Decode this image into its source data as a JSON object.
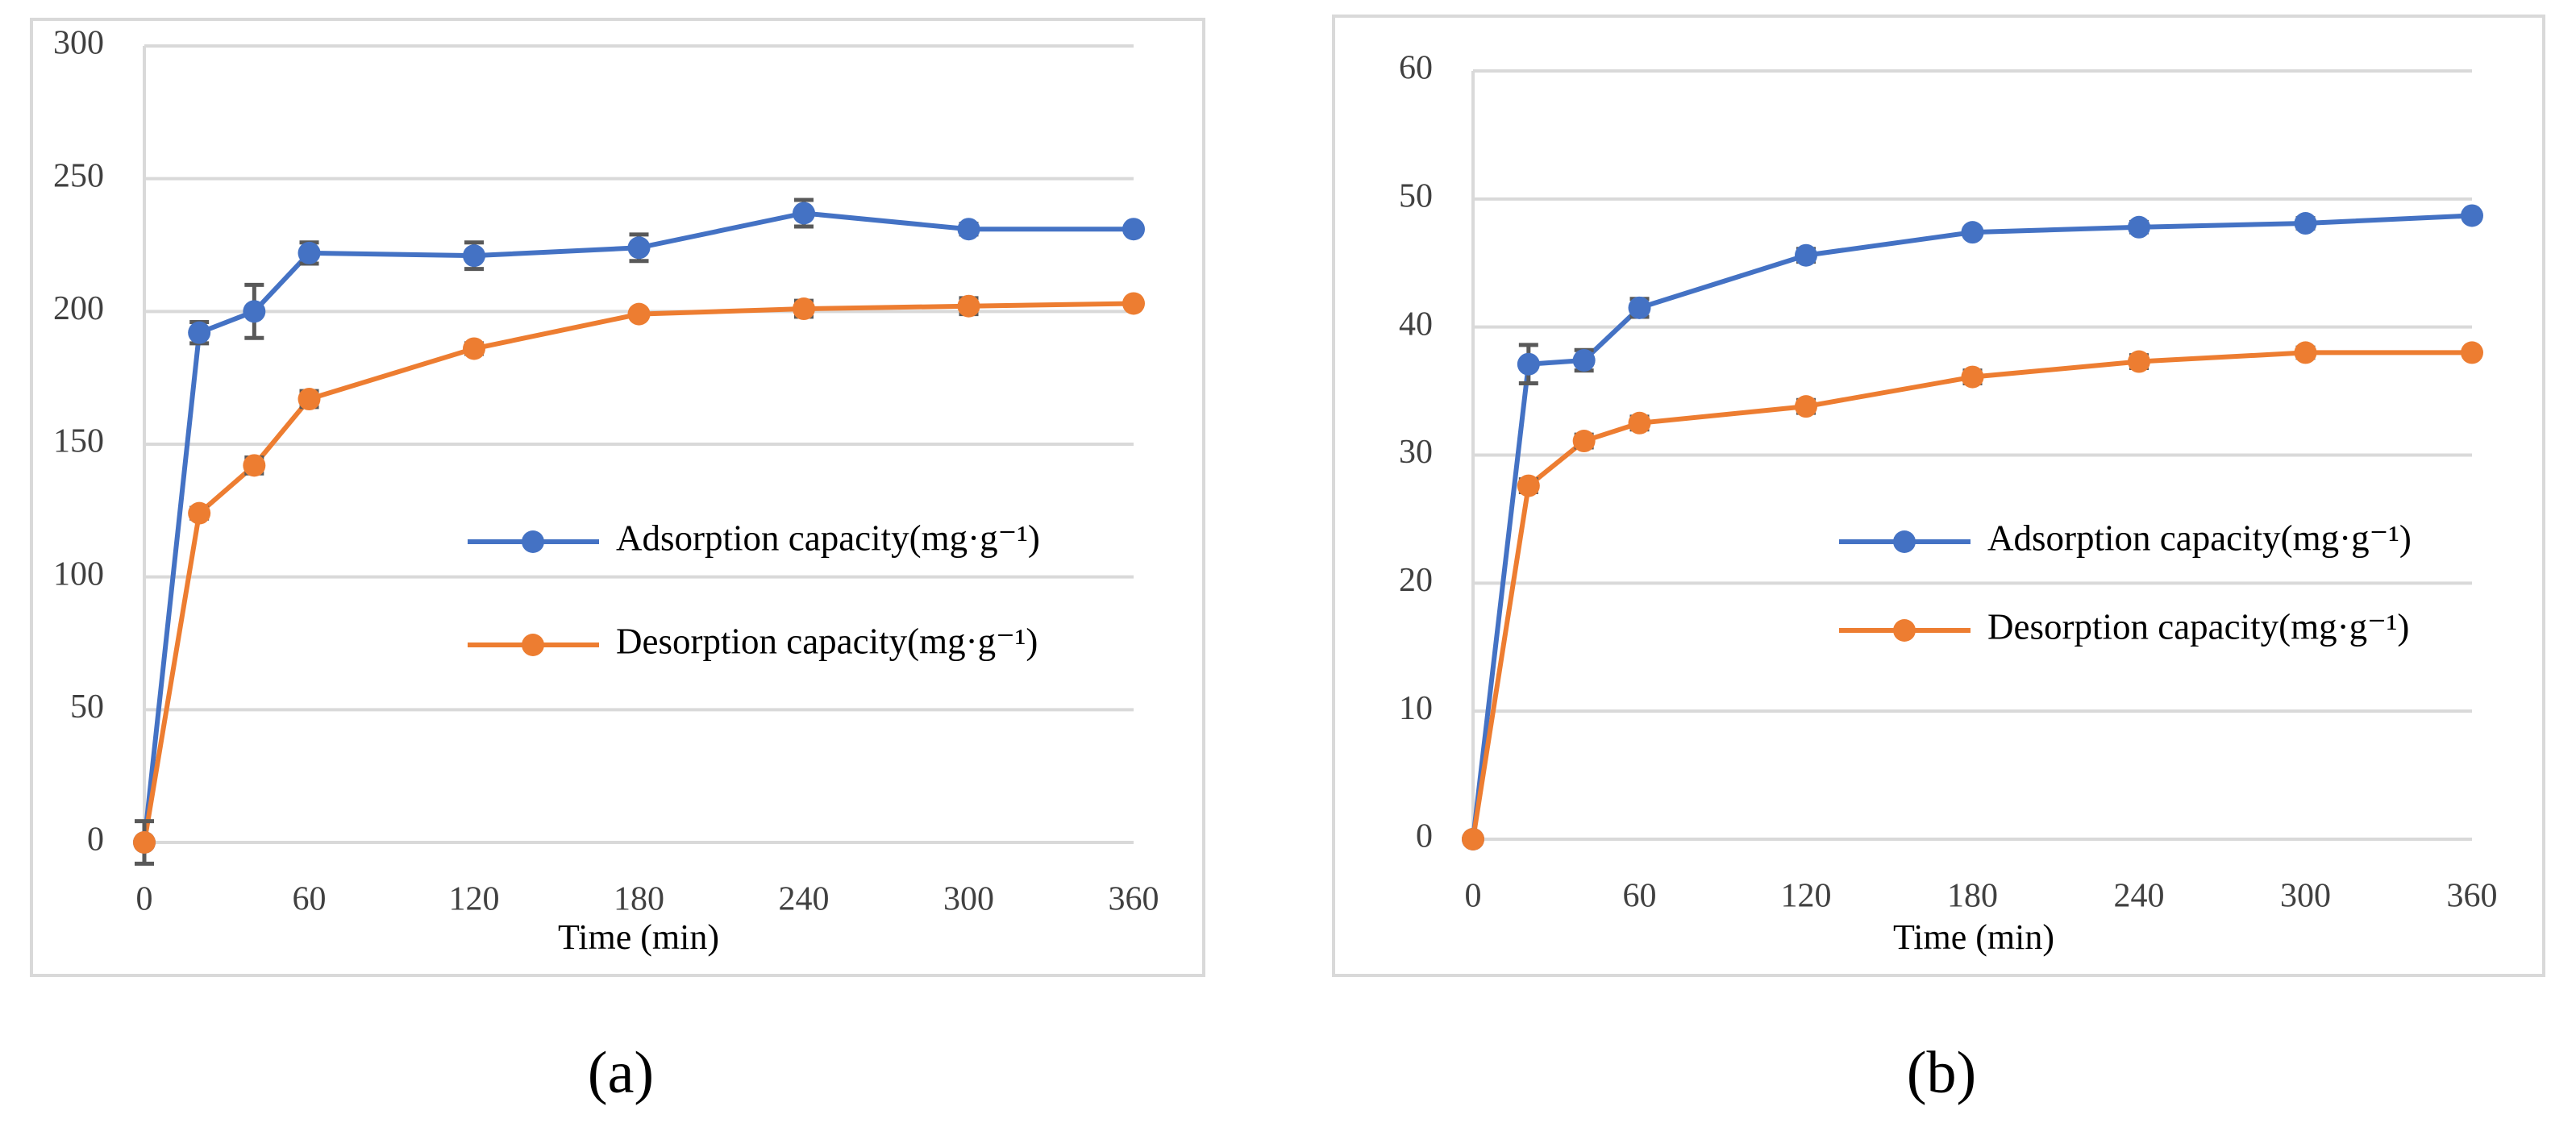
{
  "chart_data": [
    {
      "type": "line",
      "panel_label": "(a)",
      "x_label": "Time (min)",
      "x": [
        0,
        20,
        40,
        60,
        120,
        180,
        240,
        300,
        360
      ],
      "series": [
        {
          "name": "Adsorption capacity(mg·g⁻¹)",
          "color": "#4472c4",
          "values": [
            0,
            192,
            200,
            222,
            221,
            224,
            237,
            231,
            231
          ],
          "errors": [
            8,
            4,
            10,
            4,
            5,
            5,
            5,
            2,
            1
          ]
        },
        {
          "name": "Desorption capacity(mg·g⁻¹)",
          "color": "#ed7d31",
          "values": [
            0,
            124,
            142,
            167,
            186,
            199,
            201,
            202,
            203
          ],
          "errors": [
            0,
            2,
            3,
            3,
            2,
            1,
            3,
            3,
            1
          ]
        }
      ],
      "xlim": [
        0,
        360
      ],
      "xticks": [
        0,
        60,
        120,
        180,
        240,
        300,
        360
      ],
      "ylim": [
        0,
        300
      ],
      "yticks": [
        0,
        50,
        100,
        150,
        200,
        250,
        300
      ],
      "grid": true
    },
    {
      "type": "line",
      "panel_label": "(b)",
      "x_label": "Time (min)",
      "x": [
        0,
        20,
        40,
        60,
        120,
        180,
        240,
        300,
        360
      ],
      "series": [
        {
          "name": "Adsorption capacity(mg·g⁻¹)",
          "color": "#4472c4",
          "values": [
            0,
            37.1,
            37.4,
            41.5,
            45.6,
            47.4,
            47.8,
            48.1,
            48.7
          ],
          "errors": [
            0,
            1.5,
            0.8,
            0.7,
            0.5,
            0.3,
            0.4,
            0.4,
            0.3
          ]
        },
        {
          "name": "Desorption capacity(mg·g⁻¹)",
          "color": "#ed7d31",
          "values": [
            0,
            27.6,
            31.1,
            32.5,
            33.8,
            36.1,
            37.3,
            38,
            38
          ],
          "errors": [
            0,
            0.5,
            0.5,
            0.5,
            0.5,
            0.5,
            0.5,
            0.4,
            0.3
          ]
        }
      ],
      "xlim": [
        0,
        360
      ],
      "xticks": [
        0,
        60,
        120,
        180,
        240,
        300,
        360
      ],
      "ylim": [
        0,
        60
      ],
      "yticks": [
        0,
        10,
        20,
        30,
        40,
        50,
        60
      ],
      "grid": true
    }
  ]
}
